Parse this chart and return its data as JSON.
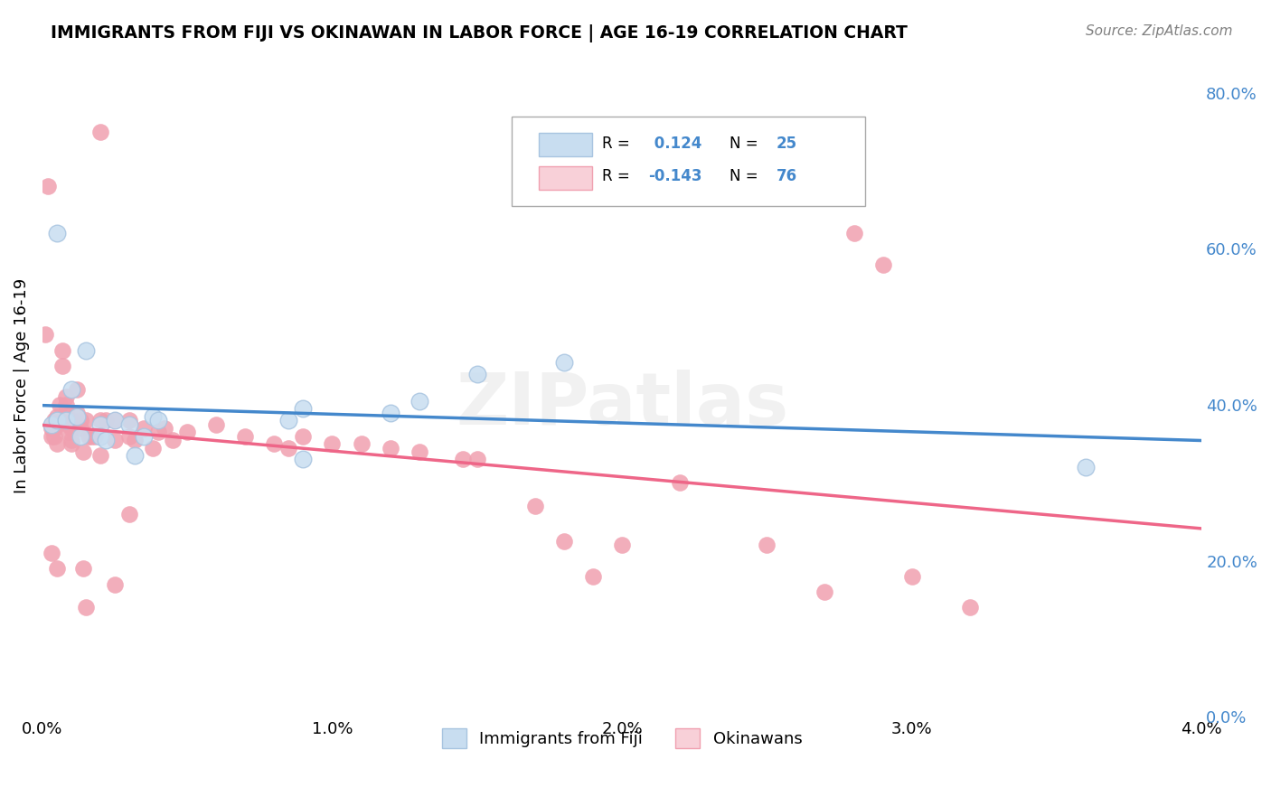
{
  "title": "IMMIGRANTS FROM FIJI VS OKINAWAN IN LABOR FORCE | AGE 16-19 CORRELATION CHART",
  "source": "Source: ZipAtlas.com",
  "ylabel": "In Labor Force | Age 16-19",
  "x_min": 0.0,
  "x_max": 0.04,
  "y_min": 0.0,
  "y_max": 0.85,
  "fiji_color": "#a8c4e0",
  "fiji_fill": "#c8ddf0",
  "okinawa_color": "#f0a0b0",
  "okinawa_fill": "#f8d0d8",
  "line_fiji_color": "#4488cc",
  "line_okinawa_color": "#ee6688",
  "fiji_R": 0.124,
  "fiji_N": 25,
  "okinawa_R": -0.143,
  "okinawa_N": 76,
  "fiji_scatter_x": [
    0.0003,
    0.0005,
    0.0008,
    0.001,
    0.0012,
    0.0013,
    0.0015,
    0.002,
    0.002,
    0.0022,
    0.0025,
    0.003,
    0.0032,
    0.0035,
    0.0038,
    0.004,
    0.0085,
    0.009,
    0.009,
    0.012,
    0.013,
    0.015,
    0.018,
    0.036,
    0.0005
  ],
  "fiji_scatter_y": [
    0.375,
    0.38,
    0.38,
    0.42,
    0.385,
    0.36,
    0.47,
    0.375,
    0.36,
    0.355,
    0.38,
    0.375,
    0.335,
    0.36,
    0.385,
    0.38,
    0.38,
    0.395,
    0.33,
    0.39,
    0.405,
    0.44,
    0.455,
    0.32,
    0.62
  ],
  "okinawa_scatter_x": [
    0.0001,
    0.0002,
    0.0003,
    0.0003,
    0.0003,
    0.0004,
    0.0004,
    0.0004,
    0.0005,
    0.0005,
    0.0005,
    0.0006,
    0.0006,
    0.0007,
    0.0007,
    0.0008,
    0.0008,
    0.0008,
    0.0009,
    0.0009,
    0.001,
    0.001,
    0.001,
    0.001,
    0.0012,
    0.0012,
    0.0013,
    0.0013,
    0.0014,
    0.0015,
    0.0016,
    0.0017,
    0.0018,
    0.002,
    0.002,
    0.0022,
    0.0025,
    0.0025,
    0.003,
    0.003,
    0.0032,
    0.0035,
    0.0038,
    0.004,
    0.0042,
    0.0045,
    0.005,
    0.006,
    0.007,
    0.008,
    0.0085,
    0.009,
    0.01,
    0.011,
    0.012,
    0.013,
    0.0145,
    0.015,
    0.017,
    0.018,
    0.019,
    0.02,
    0.022,
    0.025,
    0.027,
    0.028,
    0.029,
    0.03,
    0.032,
    0.0015,
    0.002,
    0.003,
    0.0025,
    0.0014,
    0.0005,
    0.0003
  ],
  "okinawa_scatter_y": [
    0.49,
    0.68,
    0.37,
    0.36,
    0.375,
    0.37,
    0.38,
    0.36,
    0.385,
    0.375,
    0.35,
    0.4,
    0.38,
    0.47,
    0.45,
    0.41,
    0.4,
    0.39,
    0.375,
    0.365,
    0.38,
    0.37,
    0.355,
    0.35,
    0.42,
    0.39,
    0.38,
    0.37,
    0.34,
    0.38,
    0.36,
    0.36,
    0.36,
    0.335,
    0.38,
    0.38,
    0.38,
    0.355,
    0.38,
    0.36,
    0.355,
    0.37,
    0.345,
    0.365,
    0.37,
    0.355,
    0.365,
    0.375,
    0.36,
    0.35,
    0.345,
    0.36,
    0.35,
    0.35,
    0.345,
    0.34,
    0.33,
    0.33,
    0.27,
    0.225,
    0.18,
    0.22,
    0.3,
    0.22,
    0.16,
    0.62,
    0.58,
    0.18,
    0.14,
    0.14,
    0.75,
    0.26,
    0.17,
    0.19,
    0.19,
    0.21
  ],
  "watermark": "ZIPatlas",
  "ytick_labels": [
    "0.0%",
    "20.0%",
    "40.0%",
    "60.0%",
    "80.0%"
  ],
  "ytick_vals": [
    0.0,
    0.2,
    0.4,
    0.6,
    0.8
  ],
  "xtick_labels": [
    "0.0%",
    "1.0%",
    "2.0%",
    "3.0%",
    "4.0%"
  ],
  "xtick_vals": [
    0.0,
    0.01,
    0.02,
    0.03,
    0.04
  ],
  "background_color": "#ffffff",
  "grid_color": "#dddddd"
}
